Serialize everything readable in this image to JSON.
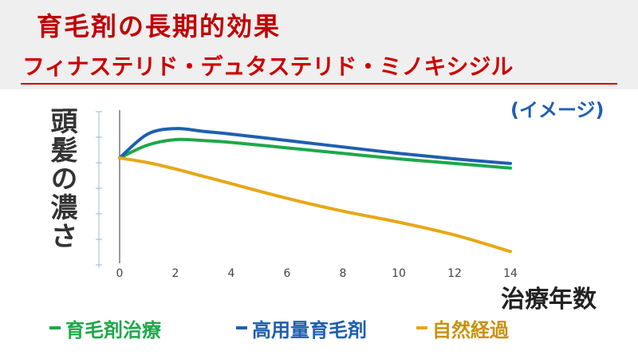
{
  "header": {
    "title": "育毛剤の長期的効果",
    "subtitle": "フィナステリド・デュタステリド・ミノキシジル",
    "note": "(イメージ)"
  },
  "chart_data": {
    "type": "line",
    "title": "育毛剤の長期的効果",
    "xlabel": "治療年数",
    "ylabel": "頭髪の濃さ",
    "x_ticks": [
      0,
      2,
      4,
      6,
      8,
      10,
      12,
      14
    ],
    "xlim": [
      0,
      14
    ],
    "ylim": [
      0,
      10
    ],
    "y_tick_labels_shown": false,
    "grid": false,
    "legend_position": "bottom",
    "series": [
      {
        "name": "育毛剤治療",
        "color": "#1ea84a",
        "x": [
          0,
          1,
          2,
          3,
          4,
          6,
          8,
          10,
          12,
          14
        ],
        "y": [
          6.0,
          6.7,
          7.0,
          6.95,
          6.85,
          6.55,
          6.25,
          5.95,
          5.7,
          5.45
        ]
      },
      {
        "name": "高用量育毛剤",
        "color": "#1f5fb0",
        "x": [
          0,
          1,
          2,
          3,
          4,
          6,
          8,
          10,
          12,
          14
        ],
        "y": [
          6.0,
          7.3,
          7.6,
          7.45,
          7.3,
          6.95,
          6.6,
          6.25,
          5.95,
          5.7
        ]
      },
      {
        "name": "自然経過",
        "color": "#e6a817",
        "x": [
          0,
          1,
          2,
          3,
          4,
          6,
          8,
          10,
          12,
          14
        ],
        "y": [
          6.0,
          5.75,
          5.4,
          5.0,
          4.6,
          3.8,
          3.1,
          2.5,
          1.8,
          0.9
        ]
      }
    ]
  }
}
